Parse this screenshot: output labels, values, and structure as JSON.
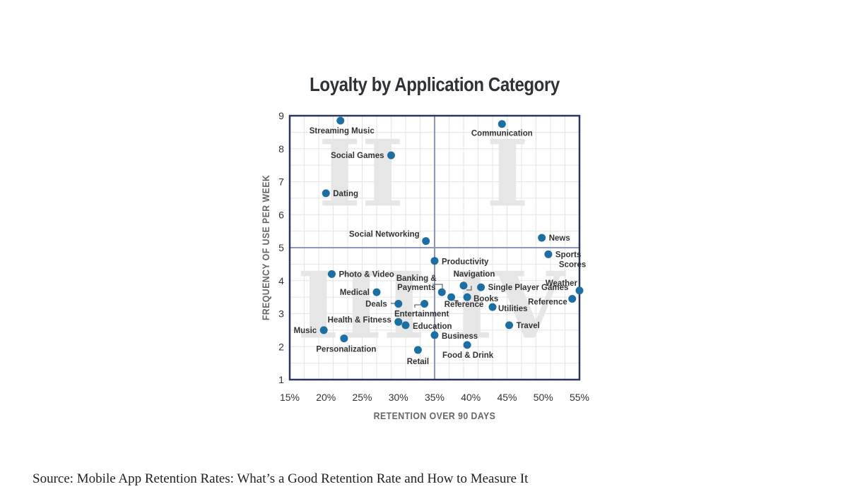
{
  "source_text": "Source: Mobile App Retention Rates: What’s a Good Retention Rate and How to Measure It",
  "chart_data": {
    "type": "scatter",
    "title": "Loyalty by Application Category",
    "xlabel": "RETENTION OVER 90 DAYS",
    "ylabel": "FREQUENCY OF USE PER WEEK",
    "xlim": [
      15,
      55
    ],
    "ylim": [
      1,
      9
    ],
    "x_ticks": [
      "15%",
      "20%",
      "25%",
      "30%",
      "35%",
      "40%",
      "45%",
      "50%",
      "55%"
    ],
    "y_ticks": [
      "1",
      "2",
      "3",
      "4",
      "5",
      "6",
      "7",
      "8",
      "9"
    ],
    "grid": true,
    "quadrant_dividers": {
      "x": 35,
      "y": 5
    },
    "quadrant_labels": [
      "I",
      "II",
      "III",
      "IV"
    ],
    "point_color": "#1b6fa3",
    "frame_color": "#2b3560",
    "points": [
      {
        "label": "Streaming Music",
        "x": 22,
        "y": 8.85
      },
      {
        "label": "Communication",
        "x": 44.3,
        "y": 8.75
      },
      {
        "label": "Social Games",
        "x": 29,
        "y": 7.8
      },
      {
        "label": "Dating",
        "x": 20,
        "y": 6.65
      },
      {
        "label": "Social Networking",
        "x": 33.8,
        "y": 5.2
      },
      {
        "label": "News",
        "x": 49.8,
        "y": 5.3
      },
      {
        "label": "Sports Scores",
        "x": 50.7,
        "y": 4.8
      },
      {
        "label": "Productivity",
        "x": 35,
        "y": 4.6
      },
      {
        "label": "Photo & Video",
        "x": 20.8,
        "y": 4.2
      },
      {
        "label": "Weather",
        "x": 55,
        "y": 3.7
      },
      {
        "label": "Banking & Payments",
        "x": 36,
        "y": 3.65
      },
      {
        "label": "Navigation",
        "x": 39,
        "y": 3.85
      },
      {
        "label": "Single Player Games",
        "x": 41.4,
        "y": 3.8
      },
      {
        "label": "Medical",
        "x": 27,
        "y": 3.65
      },
      {
        "label": "Books",
        "x": 39.5,
        "y": 3.5
      },
      {
        "label": "Reference",
        "x": 37.3,
        "y": 3.5
      },
      {
        "label": "Reference",
        "x": 54,
        "y": 3.45
      },
      {
        "label": "Deals",
        "x": 30,
        "y": 3.3
      },
      {
        "label": "Entertainment",
        "x": 33.6,
        "y": 3.3
      },
      {
        "label": "Utilities",
        "x": 43,
        "y": 3.2
      },
      {
        "label": "Health & Fitness",
        "x": 30,
        "y": 2.75
      },
      {
        "label": "Education",
        "x": 31,
        "y": 2.65
      },
      {
        "label": "Travel",
        "x": 45.3,
        "y": 2.65
      },
      {
        "label": "Music",
        "x": 19.7,
        "y": 2.5
      },
      {
        "label": "Business",
        "x": 35,
        "y": 2.35
      },
      {
        "label": "Personalization",
        "x": 22.5,
        "y": 2.25
      },
      {
        "label": "Food & Drink",
        "x": 39.5,
        "y": 2.05
      },
      {
        "label": "Retail",
        "x": 32.7,
        "y": 1.9
      }
    ]
  }
}
